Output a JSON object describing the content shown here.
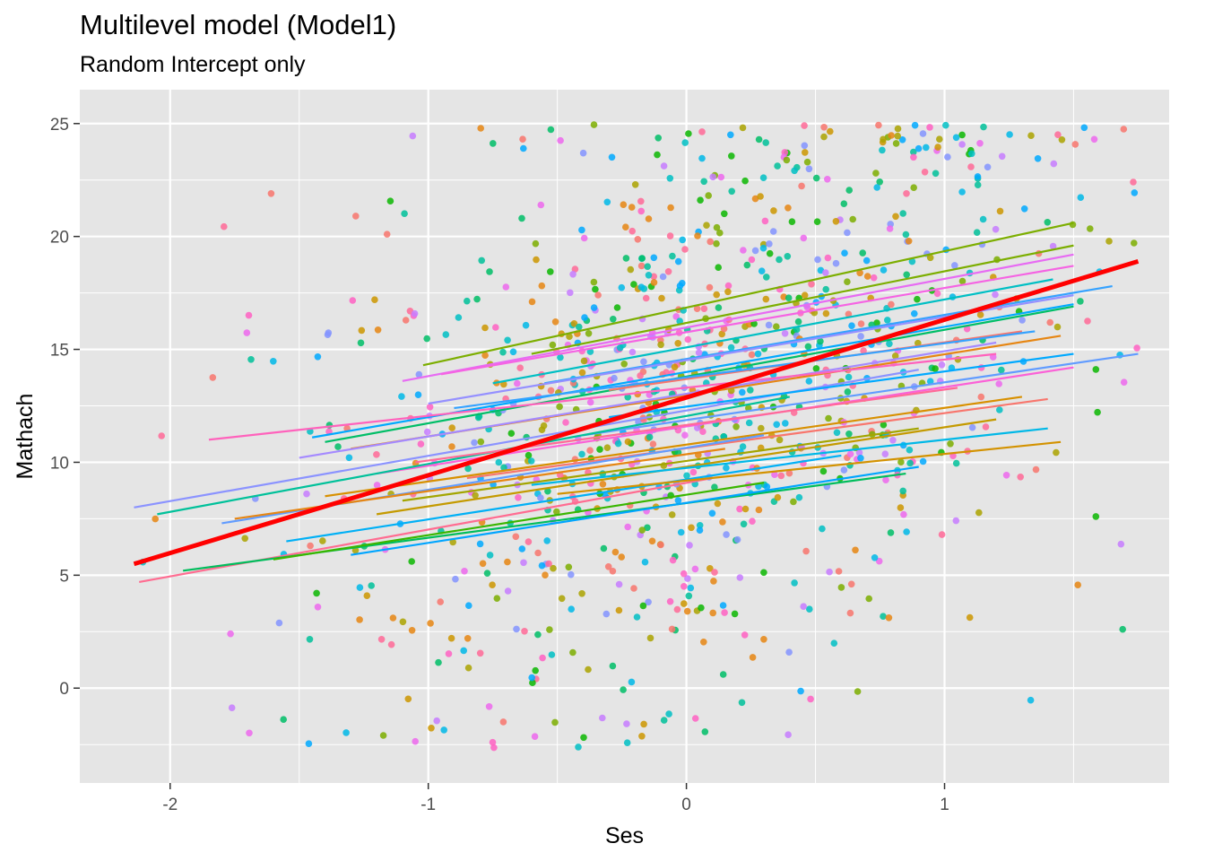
{
  "chart_data": {
    "type": "scatter",
    "title": "Multilevel model (Model1)",
    "subtitle": "Random Intercept only",
    "xlabel": "Ses",
    "ylabel": "Mathach",
    "xlim": [
      -2.35,
      1.87
    ],
    "ylim": [
      -4.2,
      26.5
    ],
    "x_ticks": [
      -2,
      -1,
      0,
      1
    ],
    "x_tick_labels": [
      "-2",
      "-1",
      "0",
      "1"
    ],
    "y_ticks": [
      0,
      5,
      10,
      15,
      20,
      25
    ],
    "y_tick_labels": [
      "0",
      "5",
      "10",
      "15",
      "20",
      "25"
    ],
    "grid": true,
    "legend": "none",
    "panel_background": "#e5e5e5",
    "grid_color": "#ffffff",
    "fixed_effect_line": {
      "color": "#ff0000",
      "x": [
        -2.14,
        1.75
      ],
      "y": [
        5.5,
        18.9
      ]
    },
    "random_intercept_lines": [
      {
        "color": "#7cae00",
        "x": [
          -1.02,
          1.5
        ],
        "y": [
          14.3,
          20.6
        ]
      },
      {
        "color": "#7cae00",
        "x": [
          -0.6,
          1.5
        ],
        "y": [
          14.8,
          19.6
        ]
      },
      {
        "color": "#e76bf3",
        "x": [
          -1.1,
          1.5
        ],
        "y": [
          13.6,
          19.2
        ]
      },
      {
        "color": "#f564e3",
        "x": [
          -0.95,
          1.5
        ],
        "y": [
          13.9,
          18.7
        ]
      },
      {
        "color": "#00bfc4",
        "x": [
          -0.75,
          1.42
        ],
        "y": [
          13.5,
          18.1
        ]
      },
      {
        "color": "#35a2ff",
        "x": [
          -0.55,
          1.65
        ],
        "y": [
          13.5,
          17.8
        ]
      },
      {
        "color": "#9590ff",
        "x": [
          -1.0,
          1.5
        ],
        "y": [
          12.6,
          17.4
        ]
      },
      {
        "color": "#00a9ff",
        "x": [
          -1.45,
          1.5
        ],
        "y": [
          11.1,
          17.0
        ]
      },
      {
        "color": "#00be67",
        "x": [
          -1.4,
          1.5
        ],
        "y": [
          10.9,
          16.9
        ]
      },
      {
        "color": "#f8766d",
        "x": [
          -0.3,
          1.3
        ],
        "y": [
          13.2,
          15.8
        ]
      },
      {
        "color": "#e68613",
        "x": [
          -1.3,
          1.45
        ],
        "y": [
          10.6,
          15.6
        ]
      },
      {
        "color": "#a58aff",
        "x": [
          -1.5,
          1.2
        ],
        "y": [
          10.2,
          15.3
        ]
      },
      {
        "color": "#ff62bc",
        "x": [
          -1.85,
          1.2
        ],
        "y": [
          11.0,
          14.8
        ]
      },
      {
        "color": "#8b93ff",
        "x": [
          -2.14,
          0.9
        ],
        "y": [
          8.0,
          14.1
        ]
      },
      {
        "color": "#35a2ff",
        "x": [
          -0.9,
          1.35
        ],
        "y": [
          12.4,
          15.8
        ]
      },
      {
        "color": "#00a9ff",
        "x": [
          -0.3,
          1.5
        ],
        "y": [
          12.0,
          14.8
        ]
      },
      {
        "color": "#619cff",
        "x": [
          -0.4,
          1.75
        ],
        "y": [
          11.2,
          14.8
        ]
      },
      {
        "color": "#fb61d7",
        "x": [
          -1.2,
          1.5
        ],
        "y": [
          9.5,
          14.2
        ]
      },
      {
        "color": "#00c19a",
        "x": [
          -2.05,
          0.4
        ],
        "y": [
          7.7,
          12.9
        ]
      },
      {
        "color": "#ff6a98",
        "x": [
          -1.05,
          1.05
        ],
        "y": [
          10.0,
          13.3
        ]
      },
      {
        "color": "#d89000",
        "x": [
          -1.4,
          1.3
        ],
        "y": [
          8.5,
          12.9
        ]
      },
      {
        "color": "#f8766d",
        "x": [
          -0.85,
          1.4
        ],
        "y": [
          9.3,
          12.8
        ]
      },
      {
        "color": "#c49a00",
        "x": [
          -1.2,
          1.2
        ],
        "y": [
          7.7,
          11.9
        ]
      },
      {
        "color": "#619cff",
        "x": [
          -1.8,
          0.3
        ],
        "y": [
          7.3,
          11.2
        ]
      },
      {
        "color": "#a3a500",
        "x": [
          -1.1,
          0.9
        ],
        "y": [
          8.3,
          11.5
        ]
      },
      {
        "color": "#e68613",
        "x": [
          -1.75,
          0.15
        ],
        "y": [
          7.5,
          10.6
        ]
      },
      {
        "color": "#00b0f6",
        "x": [
          -1.55,
          0.6
        ],
        "y": [
          6.5,
          10.3
        ]
      },
      {
        "color": "#ff6c91",
        "x": [
          -2.12,
          0.1
        ],
        "y": [
          4.7,
          9.3
        ]
      },
      {
        "color": "#00bd5c",
        "x": [
          -1.95,
          0.85
        ],
        "y": [
          5.2,
          9.5
        ]
      },
      {
        "color": "#00b8e7",
        "x": [
          -0.6,
          1.4
        ],
        "y": [
          9.0,
          11.5
        ]
      },
      {
        "color": "#39b600",
        "x": [
          -1.6,
          0.3
        ],
        "y": [
          5.7,
          9.1
        ]
      },
      {
        "color": "#00a5ff",
        "x": [
          -1.3,
          0.9
        ],
        "y": [
          5.9,
          9.8
        ]
      },
      {
        "color": "#d39200",
        "x": [
          -0.5,
          1.45
        ],
        "y": [
          8.6,
          10.9
        ]
      }
    ],
    "point_colors": [
      "#f8766d",
      "#e68613",
      "#cd9600",
      "#aba300",
      "#7cae00",
      "#0cb702",
      "#00be67",
      "#00c19a",
      "#00bfc4",
      "#00b8e7",
      "#00a9ff",
      "#8494ff",
      "#c77cff",
      "#ed68ed",
      "#ff61c3",
      "#ff6a98"
    ],
    "points_count": 1000
  }
}
